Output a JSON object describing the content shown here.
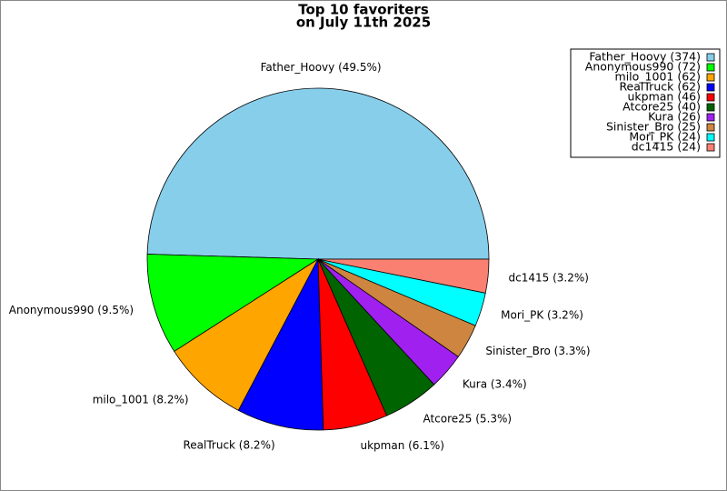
{
  "chart_data": {
    "type": "pie",
    "title": [
      "Top 10 favoriters",
      "on July 11th 2025"
    ],
    "values": [
      374,
      72,
      62,
      62,
      46,
      40,
      26,
      25,
      24,
      24
    ],
    "slice_labels": [
      "Father_Hoovy (49.5%)",
      "Anonymous990 (9.5%)",
      "milo_1001 (8.2%)",
      "RealTruck (8.2%)",
      "ukpman (6.1%)",
      "Atcore25 (5.3%)",
      "Kura (3.4%)",
      "Sinister_Bro (3.3%)",
      "Mori_PK (3.2%)",
      "dc1415 (3.2%)"
    ],
    "legend_labels": [
      "Father_Hoovy (374)",
      "Anonymous990 (72)",
      "milo_1001 (62)",
      "RealTruck (62)",
      "ukpman (46)",
      "Atcore25 (40)",
      "Kura (26)",
      "Sinister_Bro (25)",
      "Mori_PK (24)",
      "dc1415 (24)"
    ],
    "colors": [
      "#87ceeb",
      "#00ff00",
      "#ffa500",
      "#0000ff",
      "#ff0000",
      "#006400",
      "#a020f0",
      "#cd853f",
      "#00ffff",
      "#fa8072"
    ],
    "legend": "top-right"
  }
}
